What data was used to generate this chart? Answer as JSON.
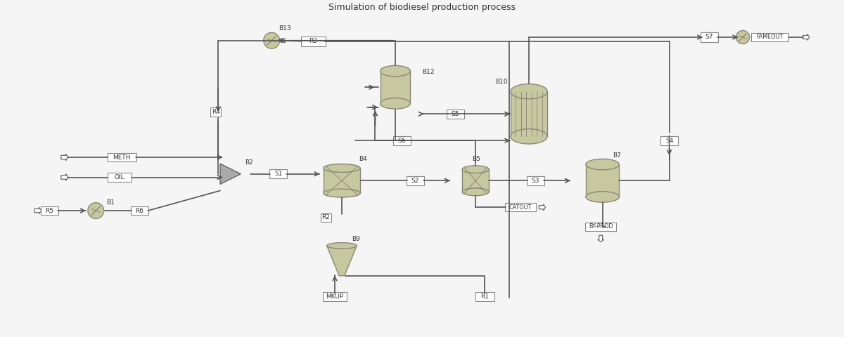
{
  "bg_color": "#f0f0f0",
  "line_color": "#555555",
  "box_color": "#ddddcc",
  "vessel_color": "#c8c8a0",
  "vessel_edge": "#888877",
  "text_color": "#333333",
  "stream_labels": [
    "S1",
    "S2",
    "S3",
    "S4",
    "S5",
    "S6",
    "S7"
  ],
  "unit_labels": [
    "B2",
    "B4",
    "B5",
    "B7",
    "B9",
    "B10",
    "B12",
    "B13",
    "R3",
    "R4",
    "R2"
  ],
  "feed_labels": [
    "METH",
    "OIL",
    "R5",
    "R6"
  ],
  "product_labels": [
    "FAMEOUT",
    "CATOUT",
    "BY-PROD",
    "MKUP"
  ],
  "title": "Simulation of biodiesel production process"
}
